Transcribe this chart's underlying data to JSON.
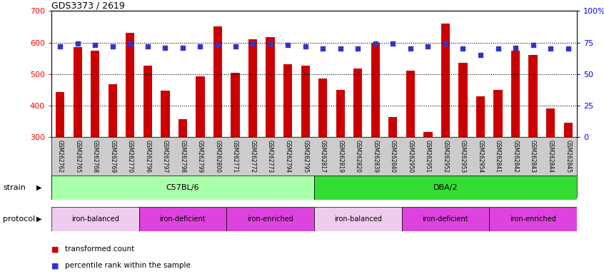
{
  "title": "GDS3373 / 2619",
  "samples": [
    "GSM262762",
    "GSM262765",
    "GSM262768",
    "GSM262769",
    "GSM262770",
    "GSM262796",
    "GSM262797",
    "GSM262798",
    "GSM262799",
    "GSM262800",
    "GSM262771",
    "GSM262772",
    "GSM262773",
    "GSM262794",
    "GSM262795",
    "GSM262817",
    "GSM262819",
    "GSM262820",
    "GSM262839",
    "GSM262840",
    "GSM262950",
    "GSM262951",
    "GSM262952",
    "GSM262953",
    "GSM262954",
    "GSM262841",
    "GSM262842",
    "GSM262843",
    "GSM262844",
    "GSM262845"
  ],
  "bar_values": [
    443,
    585,
    575,
    467,
    630,
    527,
    448,
    357,
    493,
    651,
    503,
    610,
    617,
    530,
    527,
    485,
    450,
    517,
    600,
    363,
    510,
    315,
    660,
    535,
    430,
    450,
    575,
    560,
    390,
    345
  ],
  "dot_values": [
    72,
    74,
    73,
    72,
    74,
    72,
    71,
    71,
    72,
    73,
    72,
    74,
    74,
    73,
    72,
    70,
    70,
    70,
    74,
    74,
    70,
    72,
    74,
    70,
    65,
    70,
    71,
    73,
    70,
    70
  ],
  "bar_color": "#cc0000",
  "dot_color": "#3333cc",
  "ylim_left": [
    300,
    700
  ],
  "ylim_right": [
    0,
    100
  ],
  "yticks_left": [
    300,
    400,
    500,
    600,
    700
  ],
  "yticks_right": [
    0,
    25,
    50,
    75,
    100
  ],
  "grid_values": [
    400,
    500,
    600
  ],
  "strain_groups": [
    {
      "label": "C57BL/6",
      "start": 0,
      "end": 15,
      "color": "#aaffaa"
    },
    {
      "label": "DBA/2",
      "start": 15,
      "end": 30,
      "color": "#33dd33"
    }
  ],
  "protocol_groups": [
    {
      "label": "iron-balanced",
      "start": 0,
      "end": 5,
      "color": "#eeccee"
    },
    {
      "label": "iron-deficient",
      "start": 5,
      "end": 10,
      "color": "#dd44dd"
    },
    {
      "label": "iron-enriched",
      "start": 10,
      "end": 15,
      "color": "#dd44dd"
    },
    {
      "label": "iron-balanced",
      "start": 15,
      "end": 20,
      "color": "#eeccee"
    },
    {
      "label": "iron-deficient",
      "start": 20,
      "end": 25,
      "color": "#dd44dd"
    },
    {
      "label": "iron-enriched",
      "start": 25,
      "end": 30,
      "color": "#dd44dd"
    }
  ],
  "legend_items": [
    {
      "label": "transformed count",
      "color": "#cc0000"
    },
    {
      "label": "percentile rank within the sample",
      "color": "#3333cc"
    }
  ],
  "tick_bg_color": "#cccccc",
  "bar_width": 0.5
}
